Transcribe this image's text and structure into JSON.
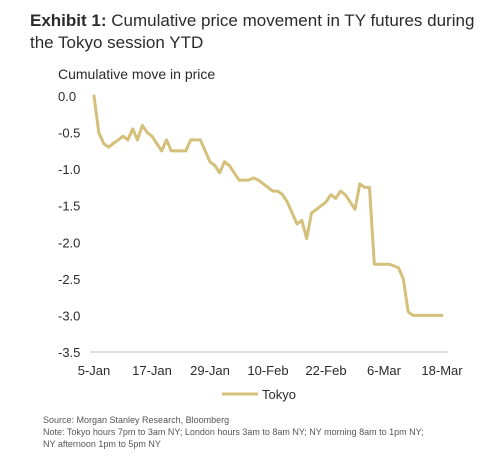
{
  "header": {
    "exhibit_label": "Exhibit 1:",
    "title": "Cumulative price movement in TY futures during the Tokyo session YTD"
  },
  "chart_data": {
    "type": "line",
    "ylabel": "Cumulative move in price",
    "ylim": [
      -3.5,
      0.0
    ],
    "yticks": [
      "0.0",
      "-0.5",
      "-1.0",
      "-1.5",
      "-2.0",
      "-2.5",
      "-3.0",
      "-3.5"
    ],
    "x_tick_labels": [
      "5-Jan",
      "17-Jan",
      "29-Jan",
      "10-Feb",
      "22-Feb",
      "6-Mar",
      "18-Mar"
    ],
    "grid": false,
    "legend_position": "bottom",
    "series": [
      {
        "name": "Tokyo",
        "color": "#d4c07a",
        "x": [
          0,
          1,
          2,
          3,
          4,
          5,
          6,
          7,
          8,
          9,
          10,
          11,
          12,
          13,
          14,
          15,
          16,
          17,
          18,
          19,
          20,
          21,
          22,
          23,
          24,
          25,
          26,
          27,
          28,
          29,
          30,
          31,
          32,
          33,
          34,
          35,
          36,
          37,
          38,
          39,
          40,
          41,
          42,
          43,
          44,
          45,
          46,
          47,
          48,
          49,
          50,
          51,
          52,
          53,
          54,
          55,
          56,
          57,
          58,
          59,
          60,
          61,
          62,
          63,
          64,
          65,
          66,
          67,
          68,
          69,
          70,
          71,
          72
        ],
        "values": [
          0.0,
          -0.5,
          -0.65,
          -0.7,
          -0.65,
          -0.6,
          -0.55,
          -0.6,
          -0.45,
          -0.6,
          -0.4,
          -0.5,
          -0.55,
          -0.65,
          -0.75,
          -0.6,
          -0.75,
          -0.75,
          -0.75,
          -0.75,
          -0.6,
          -0.6,
          -0.6,
          -0.75,
          -0.9,
          -0.95,
          -1.05,
          -0.9,
          -0.95,
          -1.05,
          -1.15,
          -1.15,
          -1.15,
          -1.12,
          -1.15,
          -1.2,
          -1.25,
          -1.3,
          -1.3,
          -1.35,
          -1.45,
          -1.6,
          -1.75,
          -1.7,
          -1.95,
          -1.6,
          -1.55,
          -1.5,
          -1.45,
          -1.35,
          -1.4,
          -1.3,
          -1.35,
          -1.45,
          -1.55,
          -1.2,
          -1.25,
          -1.25,
          -2.3,
          -2.3,
          -2.3,
          -2.3,
          -2.32,
          -2.35,
          -2.5,
          -2.95,
          -3.0,
          -3.0,
          -3.0,
          -3.0,
          -3.0,
          -3.0,
          -3.0
        ]
      }
    ]
  },
  "footer": {
    "source": "Source: Morgan Stanley Research, Bloomberg",
    "note_line1": "Note: Tokyo hours 7pm to 3am NY; London hours 3am to 8am NY; NY morning 8am to 1pm NY;",
    "note_line2": "NY afternoon 1pm to 5pm NY"
  }
}
